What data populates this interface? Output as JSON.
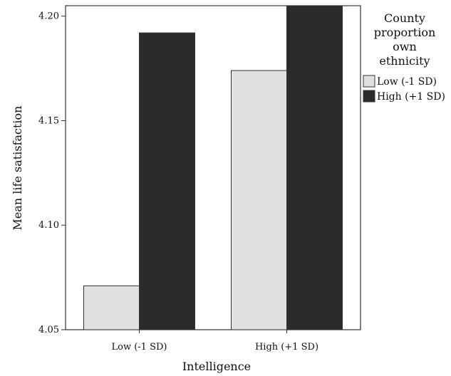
{
  "chart_data": {
    "type": "bar",
    "title": "",
    "xlabel": "Intelligence",
    "ylabel": "Mean life satisfaction",
    "categories": [
      "Low (-1 SD)",
      "High (+1 SD)"
    ],
    "ylim": [
      4.05,
      4.205
    ],
    "yticks": [
      "4.05",
      "4.10",
      "4.15",
      "4.20"
    ],
    "grid": false,
    "legend": {
      "title": [
        "County",
        "proportion",
        "own",
        "ethnicity"
      ],
      "placement": "right"
    },
    "series": [
      {
        "name": "Low (-1 SD)",
        "color": "#e0e0e0",
        "values": [
          4.071,
          4.174
        ]
      },
      {
        "name": "High (+1 SD)",
        "color": "#2b2b2b",
        "values": [
          4.192,
          4.205
        ]
      }
    ]
  }
}
